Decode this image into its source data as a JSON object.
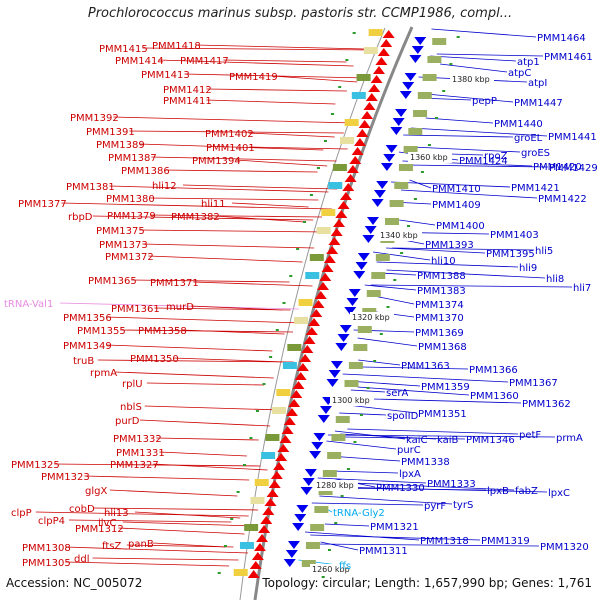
{
  "title": "Prochlorococcus marinus subsp. pastoris str. CCMP1986, compl...",
  "footer": {
    "accession": "Accession: NC_005072",
    "topology": "Topology: circular; Length: 1,657,990 bp; Genes: 1,761"
  },
  "colors": {
    "left_strand": "#cc0000",
    "right_strand": "#0000cc",
    "trna_left": "#e88be0",
    "trna_right": "#00aaee",
    "backbone": "#888888"
  },
  "kbp_markers": [
    "1380 kbp",
    "1360 kbp",
    "1340 kbp",
    "1320 kbp",
    "1300 kbp",
    "1280 kbp",
    "1260 kbp"
  ],
  "left_labels": [
    "PMM1415",
    "PMM1418",
    "PMM1414",
    "PMM1417",
    "PMM1413",
    "PMM1419",
    "PMM1412",
    "PMM1411",
    "PMM1392",
    "PMM1391",
    "PMM1402",
    "PMM1389",
    "PMM1401",
    "PMM1387",
    "PMM1394",
    "PMM1386",
    "hli12",
    "PMM1381",
    "PMM1380",
    "hli11",
    "PMM1377",
    "PMM1379",
    "rbpD",
    "PMM1382",
    "PMM1375",
    "PMM1373",
    "PMM1372",
    "PMM1365",
    "PMM1371",
    "tRNA-Val1",
    "PMM1361",
    "murD",
    "PMM1356",
    "PMM1355",
    "PMM1358",
    "PMM1349",
    "truB",
    "PMM1350",
    "rpmA",
    "rplU",
    "nblS",
    "purD",
    "PMM1332",
    "PMM1331",
    "PMM1327",
    "PMM1325",
    "PMM1323",
    "glgX",
    "cobD",
    "clpP",
    "hli13",
    "clpP4",
    "ilvC",
    "PMM1312",
    "ftsZ",
    "panB",
    "PMM1308",
    "ddl",
    "PMM1305"
  ],
  "right_labels": [
    "PMM1464",
    "atp1",
    "PMM1461",
    "atpC",
    "atpI",
    "pepP",
    "PMM1447",
    "PMM1440",
    "groEL",
    "PMM1441",
    "groES",
    "rpoZ",
    "PMM1424",
    "PMM1420",
    "PMM1429",
    "PMM1410",
    "PMM1421",
    "PMM1409",
    "PMM1422",
    "PMM1400",
    "PMM1403",
    "PMM1393",
    "PMM1395",
    "hli5",
    "hli10",
    "hli9",
    "PMM1388",
    "hli8",
    "PMM1383",
    "hli7",
    "PMM1374",
    "PMM1370",
    "PMM1369",
    "PMM1368",
    "PMM1363",
    "PMM1366",
    "PMM1367",
    "PMM1359",
    "serA",
    "PMM1360",
    "PMM1362",
    "spoIID",
    "PMM1351",
    "petF",
    "prmA",
    "kaiC",
    "kaiB",
    "PMM1346",
    "purC",
    "PMM1338",
    "lpxA",
    "PMM1330",
    "PMM1333",
    "lpxB",
    "fabZ",
    "lpxC",
    "pyrF",
    "tyrS",
    "tRNA-Gly2",
    "PMM1321",
    "PMM1318",
    "PMM1319",
    "PMM1320",
    "PMM1311",
    "ffs"
  ]
}
